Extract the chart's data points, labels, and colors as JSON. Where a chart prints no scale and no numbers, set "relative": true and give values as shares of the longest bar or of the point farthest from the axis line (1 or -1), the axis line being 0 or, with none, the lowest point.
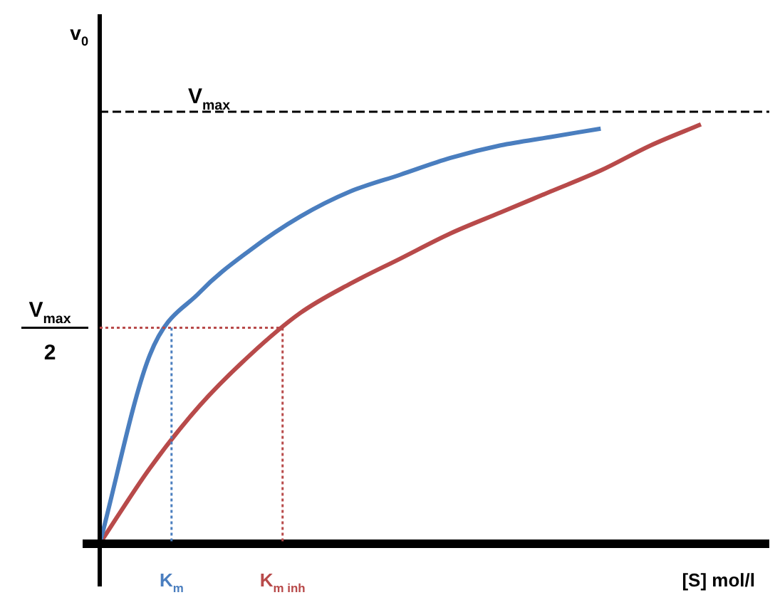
{
  "chart_data": {
    "type": "line",
    "relative": true,
    "xlabel": "[S] mol/l",
    "ylabel": "v$_{0}$",
    "categories": [
      null,
      null,
      null,
      null,
      null,
      null,
      null,
      null,
      null,
      null,
      null,
      null,
      null
    ],
    "series": [
      {
        "color": "#4a7ebf",
        "values": [
          0,
          0.45,
          0.6,
          0.7,
          0.78,
          0.84,
          0.88,
          0.92,
          0.95,
          0.97,
          0.99,
          null,
          null
        ]
      },
      {
        "color": "#b84a4a",
        "values": [
          0,
          0.18,
          0.33,
          0.45,
          0.55,
          0.62,
          0.68,
          0.74,
          0.79,
          0.84,
          0.89,
          0.95,
          1
        ]
      }
    ],
    "ref_lines": [
      {
        "axis": "y",
        "value": 1.03,
        "label": "V$_{max}$",
        "line_style": "dashed",
        "color": "#000000"
      },
      {
        "axis": "y",
        "value": 0.515,
        "label": "V$_{max}$ 2",
        "line_style": "dotted",
        "color": "#b84a4a"
      }
    ],
    "annotations": [
      "K$_{m}$",
      "K$_{m inh}$"
    ],
    "grid": false,
    "legend": false,
    "marker": "none"
  }
}
